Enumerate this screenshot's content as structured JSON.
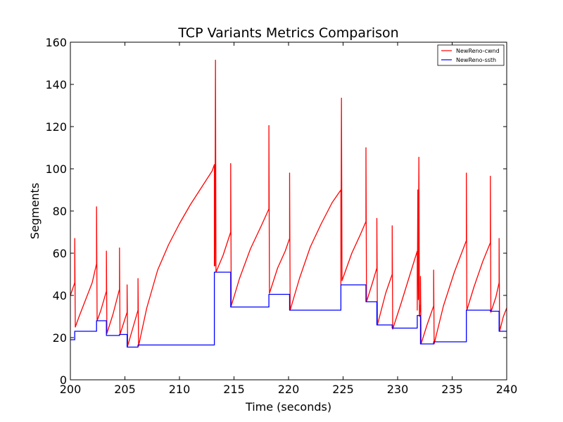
{
  "chart_data": {
    "type": "line",
    "title": "TCP Variants Metrics Comparison",
    "xlabel": "Time (seconds)",
    "ylabel": "Segments",
    "xlim": [
      200,
      240
    ],
    "ylim": [
      0,
      160
    ],
    "xticks": [
      200,
      205,
      210,
      215,
      220,
      225,
      230,
      235,
      240
    ],
    "yticks": [
      0,
      20,
      40,
      60,
      80,
      100,
      120,
      140,
      160
    ],
    "grid": false,
    "legend_position": "top-right",
    "series": [
      {
        "name": "NewReno-cwnd",
        "color": "#ff0000",
        "points": [
          [
            200.0,
            40.0
          ],
          [
            200.4,
            46.0
          ],
          [
            200.4,
            67.0
          ],
          [
            200.45,
            25.0
          ],
          [
            200.8,
            30.0
          ],
          [
            201.4,
            38.0
          ],
          [
            202.0,
            46.0
          ],
          [
            202.4,
            55.0
          ],
          [
            202.4,
            82.0
          ],
          [
            202.45,
            28.0
          ],
          [
            202.8,
            33.0
          ],
          [
            203.3,
            42.0
          ],
          [
            203.3,
            61.0
          ],
          [
            203.35,
            22.0
          ],
          [
            203.9,
            31.0
          ],
          [
            204.5,
            43.0
          ],
          [
            204.5,
            62.5
          ],
          [
            204.55,
            21.5
          ],
          [
            205.2,
            32.0
          ],
          [
            205.2,
            45.0
          ],
          [
            205.25,
            16.0
          ],
          [
            205.7,
            24.0
          ],
          [
            206.2,
            33.0
          ],
          [
            206.2,
            48.0
          ],
          [
            206.25,
            16.0
          ],
          [
            207.0,
            34.0
          ],
          [
            208.0,
            52.0
          ],
          [
            209.0,
            64.0
          ],
          [
            210.0,
            74.0
          ],
          [
            211.0,
            83.0
          ],
          [
            212.0,
            91.0
          ],
          [
            213.0,
            99.0
          ],
          [
            213.2,
            102.0
          ],
          [
            213.2,
            54.0
          ],
          [
            213.25,
            54.0
          ],
          [
            213.3,
            151.5
          ],
          [
            213.35,
            51.0
          ],
          [
            214.0,
            59.0
          ],
          [
            214.7,
            70.0
          ],
          [
            214.7,
            102.5
          ],
          [
            214.75,
            35.0
          ],
          [
            215.5,
            48.0
          ],
          [
            216.5,
            62.0
          ],
          [
            217.5,
            73.0
          ],
          [
            218.2,
            81.0
          ],
          [
            218.2,
            120.5
          ],
          [
            218.25,
            41.0
          ],
          [
            219.0,
            53.0
          ],
          [
            219.7,
            61.0
          ],
          [
            220.1,
            67.0
          ],
          [
            220.1,
            98.0
          ],
          [
            220.15,
            33.0
          ],
          [
            221.0,
            48.0
          ],
          [
            222.0,
            63.0
          ],
          [
            223.0,
            74.0
          ],
          [
            224.0,
            84.0
          ],
          [
            224.8,
            90.0
          ],
          [
            224.8,
            45.0
          ],
          [
            224.85,
            133.5
          ],
          [
            224.9,
            47.0
          ],
          [
            225.8,
            60.0
          ],
          [
            226.6,
            69.0
          ],
          [
            227.1,
            75.0
          ],
          [
            227.1,
            110.0
          ],
          [
            227.15,
            37.0
          ],
          [
            227.7,
            46.0
          ],
          [
            228.1,
            53.0
          ],
          [
            228.1,
            76.5
          ],
          [
            228.15,
            26.0
          ],
          [
            228.9,
            41.0
          ],
          [
            229.5,
            50.0
          ],
          [
            229.5,
            73.0
          ],
          [
            229.55,
            24.0
          ],
          [
            230.3,
            36.0
          ],
          [
            231.2,
            51.0
          ],
          [
            231.8,
            61.0
          ],
          [
            231.8,
            33.0
          ],
          [
            231.85,
            90.0
          ],
          [
            231.9,
            38.0
          ],
          [
            231.95,
            105.5
          ],
          [
            232.0,
            30.0
          ],
          [
            232.1,
            36.0
          ],
          [
            232.1,
            49.0
          ],
          [
            232.15,
            17.0
          ],
          [
            232.7,
            26.0
          ],
          [
            233.3,
            35.0
          ],
          [
            233.3,
            52.0
          ],
          [
            233.35,
            17.0
          ],
          [
            234.2,
            35.0
          ],
          [
            235.2,
            51.0
          ],
          [
            236.3,
            66.0
          ],
          [
            236.3,
            98.0
          ],
          [
            236.35,
            33.0
          ],
          [
            237.0,
            44.0
          ],
          [
            237.8,
            56.0
          ],
          [
            238.5,
            65.0
          ],
          [
            238.5,
            96.5
          ],
          [
            238.55,
            32.0
          ],
          [
            239.0,
            39.0
          ],
          [
            239.3,
            46.0
          ],
          [
            239.3,
            67.0
          ],
          [
            239.35,
            23.0
          ],
          [
            239.7,
            30.0
          ],
          [
            240.0,
            34.0
          ]
        ]
      },
      {
        "name": "NewReno-ssth",
        "color": "#0000ff",
        "points": [
          [
            200.0,
            19.0
          ],
          [
            200.4,
            19.0
          ],
          [
            200.4,
            23.0
          ],
          [
            202.4,
            23.0
          ],
          [
            202.4,
            28.0
          ],
          [
            203.3,
            28.0
          ],
          [
            203.3,
            21.0
          ],
          [
            204.5,
            21.0
          ],
          [
            204.5,
            21.5
          ],
          [
            205.2,
            21.5
          ],
          [
            205.2,
            15.5
          ],
          [
            206.2,
            15.5
          ],
          [
            206.2,
            16.5
          ],
          [
            213.2,
            16.5
          ],
          [
            213.2,
            51.0
          ],
          [
            214.7,
            51.0
          ],
          [
            214.7,
            34.5
          ],
          [
            218.2,
            34.5
          ],
          [
            218.2,
            40.5
          ],
          [
            220.1,
            40.5
          ],
          [
            220.1,
            33.0
          ],
          [
            224.8,
            33.0
          ],
          [
            224.8,
            45.0
          ],
          [
            227.1,
            45.0
          ],
          [
            227.1,
            37.0
          ],
          [
            228.1,
            37.0
          ],
          [
            228.1,
            26.0
          ],
          [
            229.5,
            26.0
          ],
          [
            229.5,
            24.5
          ],
          [
            231.8,
            24.5
          ],
          [
            231.8,
            30.5
          ],
          [
            232.1,
            30.5
          ],
          [
            232.1,
            17.0
          ],
          [
            233.3,
            17.0
          ],
          [
            233.3,
            18.0
          ],
          [
            236.3,
            18.0
          ],
          [
            236.3,
            33.0
          ],
          [
            238.5,
            33.0
          ],
          [
            238.5,
            32.5
          ],
          [
            239.3,
            32.5
          ],
          [
            239.3,
            23.0
          ],
          [
            240.0,
            23.0
          ]
        ]
      }
    ]
  }
}
